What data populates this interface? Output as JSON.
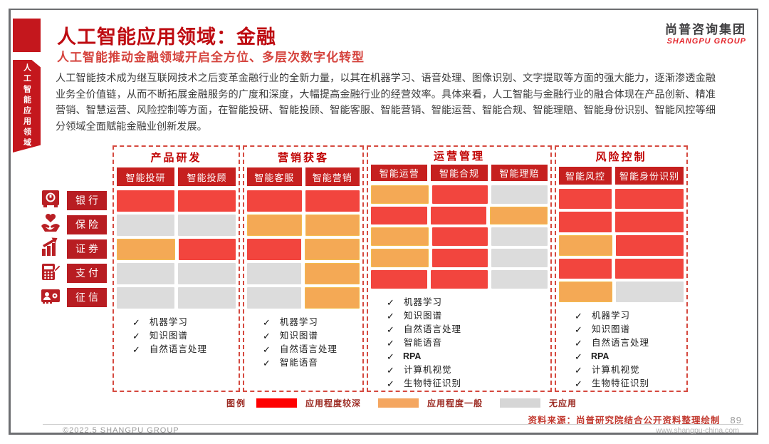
{
  "sidebar": {
    "vertical_text": "人工智能应用领域"
  },
  "logo": {
    "cn": "尚普咨询集团",
    "en": "SHANGPU GROUP"
  },
  "header": {
    "title": "人工智能应用领域：金融",
    "subtitle": "人工智能推动金融领域开启全方位、多层次数字化转型"
  },
  "body_text": "人工智能技术成为继互联网技术之后变革金融行业的全新力量，以其在机器学习、语音处理、图像识别、文字提取等方面的强大能力，逐渐渗透金融业务全价值链，从而不断拓展金融服务的广度和深度，大幅提高金融行业的经营效率。具体来看，人工智能与金融行业的融合体现在产品创新、精准营销、智慧运营、风险控制等方面，在智能投研、智能投顾、智能客服、智能营销、智能运营、智能合规、智能理赔、智能身份识别、智能风控等细分领域全面赋能金融业创新发展。",
  "colors": {
    "deep": "#f2453e",
    "mid": "#f4a955",
    "none": "#dcdcdc",
    "accent": "#c00000"
  },
  "chart_data": {
    "type": "heatmap",
    "rows": [
      {
        "label": "银行",
        "icon": "safe-icon"
      },
      {
        "label": "保险",
        "icon": "heart-hands-icon"
      },
      {
        "label": "证券",
        "icon": "chart-growth-icon"
      },
      {
        "label": "支付",
        "icon": "calculator-pen-icon"
      },
      {
        "label": "征信",
        "icon": "id-card-icon"
      }
    ],
    "levels": {
      "deep": "应用程度较深",
      "mid": "应用程度一般",
      "none": "无应用"
    },
    "groups": [
      {
        "title": "产品研发",
        "columns": [
          "智能投研",
          "智能投顾"
        ],
        "cells": [
          [
            "deep",
            "deep"
          ],
          [
            "none",
            "none"
          ],
          [
            "mid",
            "deep"
          ],
          [
            "none",
            "none"
          ],
          [
            "none",
            "none"
          ]
        ],
        "checklist": [
          "机器学习",
          "知识图谱",
          "自然语言处理"
        ]
      },
      {
        "title": "营销获客",
        "columns": [
          "智能客服",
          "智能营销"
        ],
        "cells": [
          [
            "deep",
            "deep"
          ],
          [
            "mid",
            "mid"
          ],
          [
            "deep",
            "mid"
          ],
          [
            "none",
            "mid"
          ],
          [
            "none",
            "mid"
          ]
        ],
        "checklist": [
          "机器学习",
          "知识图谱",
          "自然语言处理",
          "智能语音"
        ]
      },
      {
        "title": "运营管理",
        "columns": [
          "智能运营",
          "智能合规",
          "智能理赔"
        ],
        "cells": [
          [
            "mid",
            "deep",
            "none"
          ],
          [
            "deep",
            "deep",
            "mid"
          ],
          [
            "mid",
            "deep",
            "none"
          ],
          [
            "mid",
            "deep",
            "none"
          ],
          [
            "deep",
            "deep",
            "none"
          ]
        ],
        "checklist": [
          "机器学习",
          "知识图谱",
          "自然语言处理",
          "智能语音",
          "RPA",
          "计算机视觉",
          "生物特征识别"
        ]
      },
      {
        "title": "风险控制",
        "columns": [
          "智能风控",
          "智能身份识别"
        ],
        "cells": [
          [
            "deep",
            "deep"
          ],
          [
            "deep",
            "deep"
          ],
          [
            "mid",
            "deep"
          ],
          [
            "deep",
            "deep"
          ],
          [
            "mid",
            "none"
          ]
        ],
        "checklist": [
          "机器学习",
          "知识图谱",
          "自然语言处理",
          "RPA",
          "计算机视觉",
          "生物特征识别"
        ]
      }
    ]
  },
  "legend": {
    "label": "图例",
    "items": [
      {
        "label": "应用程度较深",
        "level": "deep",
        "color": "#fe0000"
      },
      {
        "label": "应用程度一般",
        "level": "mid",
        "color": "#f4a660"
      },
      {
        "label": "无应用",
        "level": "none",
        "color": "#d6d6d6"
      }
    ]
  },
  "footer": {
    "source": "资料来源：尚普研究院结合公开资料整理绘制",
    "page_number": "89",
    "copyright": "©2022.5  SHANGPU GROUP",
    "website": "www.shangpu-china.com"
  }
}
